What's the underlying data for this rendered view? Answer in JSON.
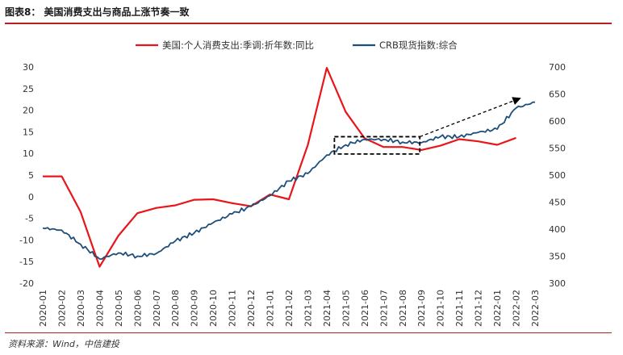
{
  "header": {
    "title": "图表8：  美国消费支出与商品上涨节奏一致"
  },
  "footer": {
    "source": "资料来源：Wind，中信建投"
  },
  "chart_data": {
    "type": "line",
    "legend_position": "top",
    "grid": false,
    "x_ticks": [
      "2020-01",
      "2020-02",
      "2020-03",
      "2020-04",
      "2020-05",
      "2020-06",
      "2020-07",
      "2020-08",
      "2020-09",
      "2020-10",
      "2020-11",
      "2020-12",
      "2021-01",
      "2021-02",
      "2021-03",
      "2021-04",
      "2021-05",
      "2021-06",
      "2021-07",
      "2021-08",
      "2021-09",
      "2021-10",
      "2021-11",
      "2021-12",
      "2022-01",
      "2022-02",
      "2022-03"
    ],
    "left_axis": {
      "range": [
        -20,
        30
      ],
      "ticks": [
        "30",
        "25",
        "20",
        "15",
        "10",
        "5",
        "0",
        "-5",
        "-10",
        "-15",
        "-20"
      ]
    },
    "right_axis": {
      "range": [
        300,
        700
      ],
      "ticks": [
        "700",
        "650",
        "600",
        "550",
        "500",
        "450",
        "400",
        "350",
        "300"
      ]
    },
    "series": [
      {
        "name": "美国:个人消费支出:季调:折年数:同比",
        "axis": "left",
        "color": "#e8161b",
        "x": [
          "2020-01",
          "2020-02",
          "2020-03",
          "2020-04",
          "2020-05",
          "2020-06",
          "2020-07",
          "2020-08",
          "2020-09",
          "2020-10",
          "2020-11",
          "2020-12",
          "2021-01",
          "2021-02",
          "2021-03",
          "2021-04",
          "2021-05",
          "2021-06",
          "2021-07",
          "2021-08",
          "2021-09",
          "2021-10",
          "2021-11",
          "2021-12",
          "2022-01",
          "2022-02"
        ],
        "values": [
          4.7,
          4.7,
          -3.5,
          -16.2,
          -9.0,
          -3.8,
          -2.6,
          -2.0,
          -0.7,
          -0.6,
          -1.5,
          -2.2,
          0.5,
          -0.6,
          12.0,
          29.8,
          19.6,
          13.5,
          11.5,
          11.5,
          10.8,
          11.8,
          13.3,
          12.8,
          12.0,
          13.6
        ]
      },
      {
        "name": "CRB现货指数:综合",
        "axis": "right",
        "color": "#1f4e79",
        "x": [
          "2020-01",
          "2020-02",
          "2020-03",
          "2020-04",
          "2020-05",
          "2020-06",
          "2020-07",
          "2020-08",
          "2020-09",
          "2020-10",
          "2020-11",
          "2020-12",
          "2021-01",
          "2021-02",
          "2021-03",
          "2021-04",
          "2021-05",
          "2021-06",
          "2021-07",
          "2021-08",
          "2021-09",
          "2021-10",
          "2021-11",
          "2021-12",
          "2022-01",
          "2022-02",
          "2022-03"
        ],
        "values": [
          402,
          398,
          372,
          345,
          356,
          350,
          355,
          378,
          393,
          412,
          428,
          442,
          462,
          489,
          503,
          537,
          556,
          566,
          566,
          561,
          560,
          571,
          571,
          579,
          585,
          624,
          635
        ]
      }
    ],
    "annotations": [
      "dashed-box-2021-05-to-2021-08",
      "dashed-arrow-to-2022-03"
    ]
  }
}
